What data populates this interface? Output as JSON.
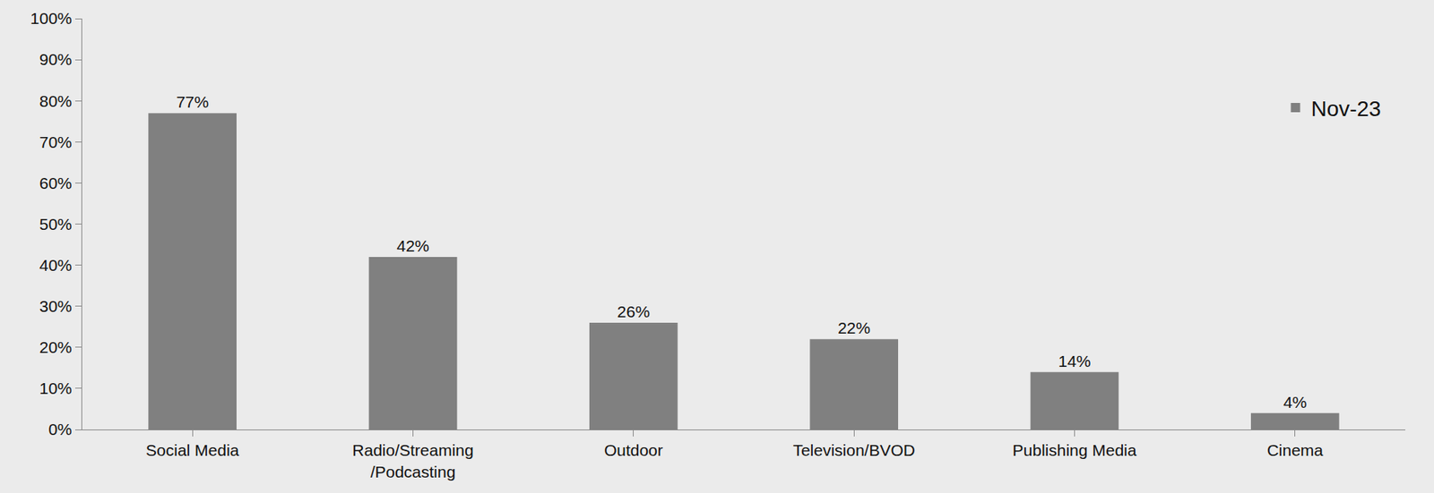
{
  "chart_data": {
    "type": "bar",
    "categories": [
      "Social Media",
      "Radio/Streaming/Podcasting",
      "Outdoor",
      "Television/BVOD",
      "Publishing Media",
      "Cinema"
    ],
    "series": [
      {
        "name": "Nov-23",
        "color": "#808080",
        "values": [
          77,
          42,
          26,
          22,
          14,
          4
        ],
        "value_labels": [
          "77%",
          "42%",
          "26%",
          "22%",
          "14%",
          "4%"
        ]
      }
    ],
    "ylim": [
      0,
      100
    ],
    "yticks": [
      {
        "value": 0,
        "label": "0%"
      },
      {
        "value": 10,
        "label": "10%"
      },
      {
        "value": 20,
        "label": "20%"
      },
      {
        "value": 30,
        "label": "30%"
      },
      {
        "value": 40,
        "label": "40%"
      },
      {
        "value": 50,
        "label": "50%"
      },
      {
        "value": 60,
        "label": "60%"
      },
      {
        "value": 70,
        "label": "70%"
      },
      {
        "value": 80,
        "label": "80%"
      },
      {
        "value": 90,
        "label": "90%"
      },
      {
        "value": 100,
        "label": "100%"
      }
    ],
    "grid": false,
    "legend": "upper right",
    "data_labels": true
  }
}
